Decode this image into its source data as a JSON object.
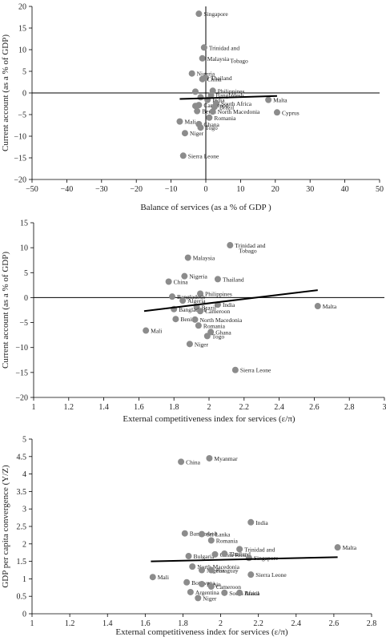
{
  "charts": [
    {
      "type": "scatter",
      "xlabel": "Balance of services (as a % of GDP )",
      "ylabel": "Current account (as a % of GDP)",
      "xlim": [
        -50,
        50
      ],
      "ylim": [
        -20,
        20
      ],
      "xticks": [
        "−50",
        "−40",
        "−30",
        "−20",
        "−10",
        "0",
        "10",
        "20",
        "30",
        "40",
        "50"
      ],
      "yticks": [
        "20",
        "15",
        "10",
        "5",
        "0",
        "−5",
        "−10",
        "−15",
        "−20"
      ],
      "fit_line": {
        "x": [
          -7.5,
          20.5
        ],
        "y": [
          -1.4,
          -0.7
        ]
      },
      "points": [
        {
          "x": -2,
          "y": 18.3,
          "label": "Singapore"
        },
        {
          "x": -0.5,
          "y": 10.5,
          "label": "Trinidad and"
        },
        {
          "x": 7,
          "y": 7.5,
          "label": "Tobago",
          "nodot": true
        },
        {
          "x": -1,
          "y": 8,
          "label": "Malaysia"
        },
        {
          "x": -4,
          "y": 4.5,
          "label": "Nigeria"
        },
        {
          "x": 0,
          "y": 3.5,
          "label": "Thailand"
        },
        {
          "x": -1,
          "y": 3.2,
          "label": "China"
        },
        {
          "x": -3,
          "y": 0.3,
          "label": ""
        },
        {
          "x": 2,
          "y": 0.5,
          "label": "Philippines"
        },
        {
          "x": 1.5,
          "y": -0.5,
          "label": "Bangladesh"
        },
        {
          "x": -1.5,
          "y": -1,
          "label": ""
        },
        {
          "x": 0.5,
          "y": -1.6,
          "label": "India"
        },
        {
          "x": 3,
          "y": -2.4,
          "label": "South Africa"
        },
        {
          "x": -2,
          "y": -2.8,
          "label": "Cameroon"
        },
        {
          "x": 2.5,
          "y": -3.2,
          "label": "Brazil"
        },
        {
          "x": -3,
          "y": -3,
          "label": ""
        },
        {
          "x": 18,
          "y": -1.6,
          "label": "Malta"
        },
        {
          "x": -2.5,
          "y": -4.2,
          "label": "Benin"
        },
        {
          "x": 2,
          "y": -4.3,
          "label": "North Macedonia"
        },
        {
          "x": 20.5,
          "y": -4.5,
          "label": "Cyprus"
        },
        {
          "x": 1,
          "y": -5.7,
          "label": "Romania"
        },
        {
          "x": -7.5,
          "y": -6.6,
          "label": "Mali"
        },
        {
          "x": -2,
          "y": -7.2,
          "label": "Ghana"
        },
        {
          "x": -1.5,
          "y": -8,
          "label": "Togo"
        },
        {
          "x": -6,
          "y": -9.3,
          "label": "Niger"
        },
        {
          "x": -6.5,
          "y": -14.5,
          "label": "Sierra Leone"
        }
      ]
    },
    {
      "type": "scatter",
      "xlabel": "External competitiveness index for services (ε/π)",
      "ylabel": "Current account (as a % of GDP)",
      "xlim": [
        1,
        3
      ],
      "ylim": [
        -20,
        15
      ],
      "xticks": [
        "1",
        "1.2",
        "1.4",
        "1.6",
        "1.8",
        "2",
        "2.2",
        "2.4",
        "2.6",
        "2.8",
        "3"
      ],
      "yticks": [
        "15",
        "10",
        "5",
        "0",
        "−5",
        "−10",
        "−15",
        "−20"
      ],
      "fit_line": {
        "x": [
          1.63,
          2.62
        ],
        "y": [
          -2.7,
          1.5
        ]
      },
      "points": [
        {
          "x": 2.12,
          "y": 10.5,
          "label": "Trinidad and"
        },
        {
          "x": 2.17,
          "y": 9.5,
          "label": "Tobago",
          "nodot": true
        },
        {
          "x": 1.88,
          "y": 8,
          "label": "Malaysia"
        },
        {
          "x": 1.86,
          "y": 4.3,
          "label": "Nigeria"
        },
        {
          "x": 2.05,
          "y": 3.7,
          "label": "Thailand"
        },
        {
          "x": 1.77,
          "y": 3.2,
          "label": "China"
        },
        {
          "x": 1.95,
          "y": 0.8,
          "label": "Philippines"
        },
        {
          "x": 1.79,
          "y": 0.2,
          "label": "Bangladesh"
        },
        {
          "x": 1.85,
          "y": -0.6,
          "label": "Algeria"
        },
        {
          "x": 2.05,
          "y": -1.4,
          "label": "India"
        },
        {
          "x": 1.93,
          "y": -1.9,
          "label": "Brazil"
        },
        {
          "x": 1.8,
          "y": -2.3,
          "label": "Bangladesh"
        },
        {
          "x": 1.95,
          "y": -2.7,
          "label": "Cameroon"
        },
        {
          "x": 2.62,
          "y": -1.7,
          "label": "Malta"
        },
        {
          "x": 1.81,
          "y": -4.3,
          "label": "Benin"
        },
        {
          "x": 1.92,
          "y": -4.4,
          "label": "North Macedonia"
        },
        {
          "x": 1.94,
          "y": -5.6,
          "label": "Romania"
        },
        {
          "x": 1.64,
          "y": -6.6,
          "label": "Mali"
        },
        {
          "x": 2.01,
          "y": -6.9,
          "label": "Ghana"
        },
        {
          "x": 1.99,
          "y": -7.7,
          "label": "Togo"
        },
        {
          "x": 1.89,
          "y": -9.3,
          "label": "Niger"
        },
        {
          "x": 2.15,
          "y": -14.5,
          "label": "Sierra Leone"
        }
      ]
    },
    {
      "type": "scatter",
      "xlabel": "External competitiveness index for services (ε/π)",
      "ylabel": "GDP per capita convergence (Y/Z)",
      "xlim": [
        1,
        2.8
      ],
      "ylim": [
        0,
        5
      ],
      "xticks": [
        "1",
        "1.2",
        "1.4",
        "1.6",
        "1.8",
        "2",
        "2.2",
        "2.4",
        "2.6",
        "2.8"
      ],
      "yticks": [
        "5",
        "4.5",
        "4",
        "3.5",
        "3",
        "2.5",
        "2",
        "1.5",
        "1",
        "0.5",
        "0"
      ],
      "fit_line": {
        "x": [
          1.63,
          2.62
        ],
        "y": [
          1.5,
          1.62
        ]
      },
      "points": [
        {
          "x": 1.94,
          "y": 4.45,
          "label": "Myanmar"
        },
        {
          "x": 1.79,
          "y": 4.35,
          "label": "China"
        },
        {
          "x": 2.16,
          "y": 2.62,
          "label": "India"
        },
        {
          "x": 1.81,
          "y": 2.3,
          "label": "Bangladesh"
        },
        {
          "x": 1.9,
          "y": 2.28,
          "label": "Sri Lanka"
        },
        {
          "x": 1.95,
          "y": 2.1,
          "label": "Romania"
        },
        {
          "x": 2.1,
          "y": 1.85,
          "label": "Trinidad and"
        },
        {
          "x": 2.62,
          "y": 1.9,
          "label": "Malta"
        },
        {
          "x": 1.83,
          "y": 1.65,
          "label": "Bulgaria"
        },
        {
          "x": 1.97,
          "y": 1.7,
          "label": "Costa Rica"
        },
        {
          "x": 2.02,
          "y": 1.72,
          "label": "Thailand"
        },
        {
          "x": 2.15,
          "y": 1.6,
          "label": "Singapore"
        },
        {
          "x": 1.85,
          "y": 1.35,
          "label": "North Macedonia"
        },
        {
          "x": 1.9,
          "y": 1.25,
          "label": "Nigeria"
        },
        {
          "x": 1.95,
          "y": 1.25,
          "label": "Paraguay"
        },
        {
          "x": 2.16,
          "y": 1.12,
          "label": "Sierra Leone"
        },
        {
          "x": 1.64,
          "y": 1.05,
          "label": "Mali"
        },
        {
          "x": 1.82,
          "y": 0.9,
          "label": "Botswana"
        },
        {
          "x": 1.9,
          "y": 0.85,
          "label": "Benin"
        },
        {
          "x": 1.95,
          "y": 0.78,
          "label": "Cameroon"
        },
        {
          "x": 1.84,
          "y": 0.62,
          "label": "Argentina"
        },
        {
          "x": 2.02,
          "y": 0.6,
          "label": "South Africa"
        },
        {
          "x": 2.1,
          "y": 0.6,
          "label": "Brazil"
        },
        {
          "x": 1.88,
          "y": 0.45,
          "label": "Niger"
        }
      ]
    }
  ]
}
